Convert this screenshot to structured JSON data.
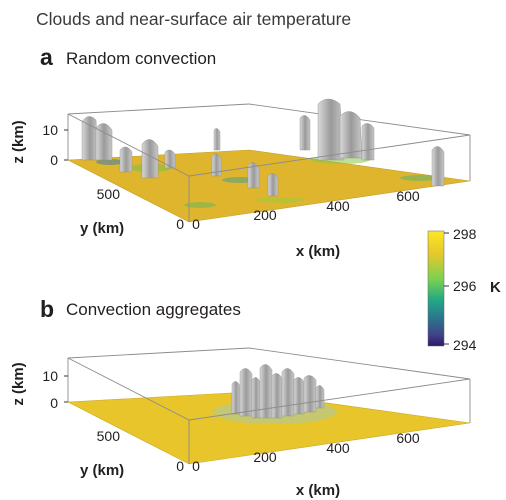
{
  "figure": {
    "title": "Clouds and near-surface air temperature"
  },
  "panels": [
    {
      "label": "a",
      "title": "Random convection",
      "z_axis": {
        "label": "z (km)",
        "ticks": [
          "10",
          "0"
        ]
      },
      "y_axis": {
        "label": "y (km)",
        "ticks": [
          "500",
          "0"
        ]
      },
      "x_axis": {
        "label": "x (km)",
        "ticks": [
          "0",
          "200",
          "400",
          "600"
        ]
      },
      "cloud_distribution": "scattered",
      "surface_color": "#e0b52e"
    },
    {
      "label": "b",
      "title": "Convection aggregates",
      "z_axis": {
        "label": "z (km)",
        "ticks": [
          "10",
          "0"
        ]
      },
      "y_axis": {
        "label": "y (km)",
        "ticks": [
          "500",
          "0"
        ]
      },
      "x_axis": {
        "label": "x (km)",
        "ticks": [
          "0",
          "200",
          "400",
          "600"
        ]
      },
      "cloud_distribution": "single central cluster",
      "surface_color": "#e8c52a"
    }
  ],
  "colorbar": {
    "unit": "K",
    "ticks": [
      "298",
      "296",
      "294"
    ],
    "colors": [
      "#fde725",
      "#e6c82a",
      "#7ad151",
      "#22a884",
      "#2a788e",
      "#414487",
      "#2b1a6b"
    ]
  }
}
